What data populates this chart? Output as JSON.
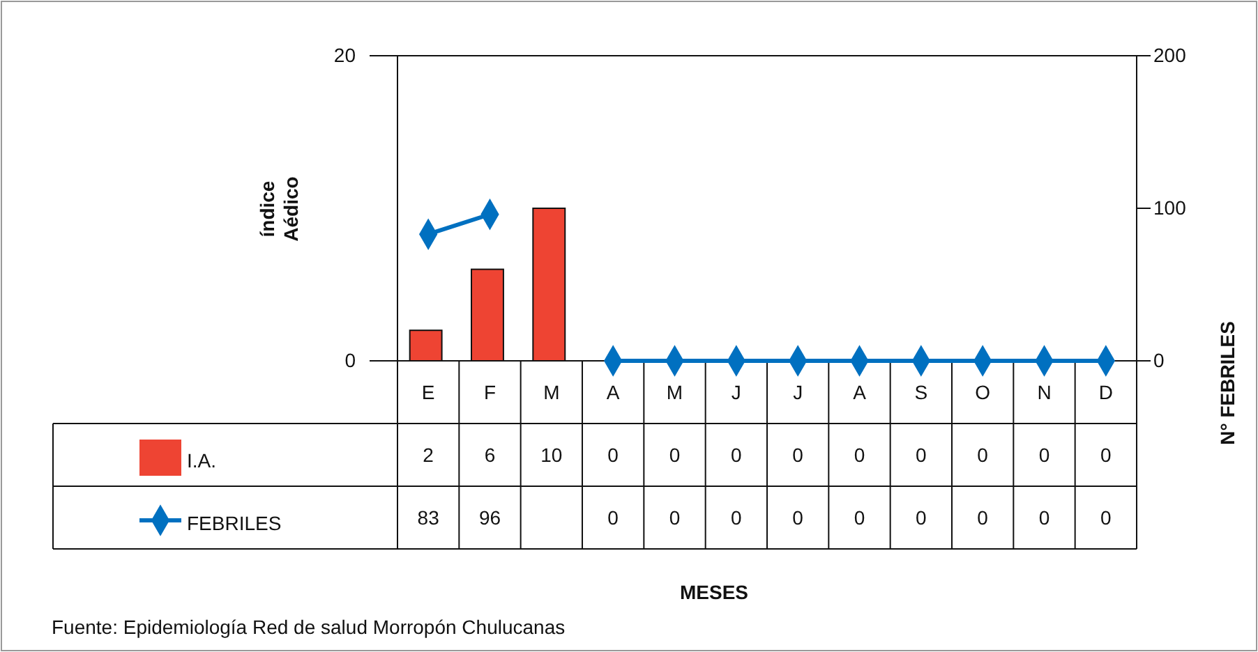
{
  "chart_data": {
    "type": "bar",
    "ylabel": "índice Aédico",
    "y2label": "N° FEBRILES",
    "annotations": [
      "MESES",
      "Fuente: Epidemiología Red de salud Morropón Chulucanas"
    ],
    "categories": [
      "E",
      "F",
      "M",
      "A",
      "M",
      "J",
      "J",
      "A",
      "S",
      "O",
      "N",
      "D"
    ],
    "series": [
      {
        "name": "I.A.",
        "color": "#ee4433",
        "values": [
          2,
          6,
          10,
          0,
          0,
          0,
          0,
          0,
          0,
          0,
          0,
          0
        ]
      },
      {
        "name": "FEBRILES",
        "type": "line",
        "axis": "y2",
        "color": "#0070c0",
        "marker": "diamond",
        "values": [
          83,
          96,
          null,
          0,
          0,
          0,
          0,
          0,
          0,
          0,
          0,
          0
        ]
      }
    ],
    "ylim": [
      0,
      20
    ],
    "yticks": [
      0,
      20
    ],
    "y2lim": [
      0,
      200
    ],
    "y2ticks": [
      0,
      100,
      200
    ],
    "data_labels": true,
    "legend": "bottom"
  }
}
